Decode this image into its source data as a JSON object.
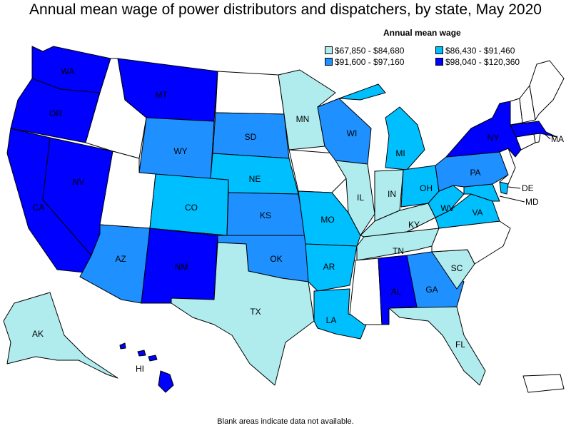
{
  "title": "Annual mean wage of power distributors and dispatchers, by state, May 2020",
  "legend": {
    "title": "Annual mean wage",
    "items": [
      {
        "range": "$67,850 - $84,680",
        "color": "#b0ecee"
      },
      {
        "range": "$86,430 - $91,460",
        "color": "#00bfff"
      },
      {
        "range": "$91,600 - $97,160",
        "color": "#1e90ff"
      },
      {
        "range": "$98,040 - $120,360",
        "color": "#0000ff"
      }
    ]
  },
  "colors": {
    "no_data": "#ffffff",
    "border": "#000000"
  },
  "states": {
    "WA": {
      "label": "WA",
      "tier": 3
    },
    "OR": {
      "label": "OR",
      "tier": 3
    },
    "CA": {
      "label": "CA",
      "tier": 3
    },
    "NV": {
      "label": "NV",
      "tier": 3
    },
    "MT": {
      "label": "MT",
      "tier": 3
    },
    "NM": {
      "label": "NM",
      "tier": 3
    },
    "NY": {
      "label": "NY",
      "tier": 3
    },
    "AL": {
      "label": "AL",
      "tier": 3
    },
    "MA": {
      "label": "MA",
      "tier": 3
    },
    "HI": {
      "label": "HI",
      "tier": 3
    },
    "WY": {
      "label": "WY",
      "tier": 2
    },
    "SD": {
      "label": "SD",
      "tier": 2
    },
    "KS": {
      "label": "KS",
      "tier": 2
    },
    "OK": {
      "label": "OK",
      "tier": 2
    },
    "AZ": {
      "label": "AZ",
      "tier": 2
    },
    "WI": {
      "label": "WI",
      "tier": 2
    },
    "PA": {
      "label": "PA",
      "tier": 2
    },
    "GA": {
      "label": "GA",
      "tier": 2
    },
    "CO": {
      "label": "CO",
      "tier": 1
    },
    "NE": {
      "label": "NE",
      "tier": 1
    },
    "MO": {
      "label": "MO",
      "tier": 1
    },
    "AR": {
      "label": "AR",
      "tier": 1
    },
    "LA": {
      "label": "LA",
      "tier": 1
    },
    "MI": {
      "label": "MI",
      "tier": 1
    },
    "OH": {
      "label": "OH",
      "tier": 1
    },
    "WV": {
      "label": "WV",
      "tier": 1
    },
    "VA": {
      "label": "VA",
      "tier": 1
    },
    "MD": {
      "label": "MD",
      "tier": 1
    },
    "DE": {
      "label": "DE",
      "tier": 1
    },
    "MN": {
      "label": "MN",
      "tier": 0
    },
    "IL": {
      "label": "IL",
      "tier": 0
    },
    "IN": {
      "label": "IN",
      "tier": 0
    },
    "KY": {
      "label": "KY",
      "tier": 0
    },
    "TN": {
      "label": "TN",
      "tier": 0
    },
    "SC": {
      "label": "SC",
      "tier": 0
    },
    "FL": {
      "label": "FL",
      "tier": 0
    },
    "TX": {
      "label": "TX",
      "tier": 0
    },
    "AK": {
      "label": "AK",
      "tier": 0
    },
    "ID": {
      "tier": null
    },
    "UT": {
      "tier": null
    },
    "ND": {
      "tier": null
    },
    "IA": {
      "tier": null
    },
    "MS": {
      "tier": null
    },
    "NC": {
      "tier": null
    },
    "NJ": {
      "tier": null
    },
    "CT": {
      "tier": null
    },
    "RI": {
      "tier": null
    },
    "VT": {
      "tier": null
    },
    "NH": {
      "tier": null
    },
    "ME": {
      "tier": null
    },
    "PR": {
      "tier": null
    }
  },
  "footnote": "Blank areas indicate data not available."
}
